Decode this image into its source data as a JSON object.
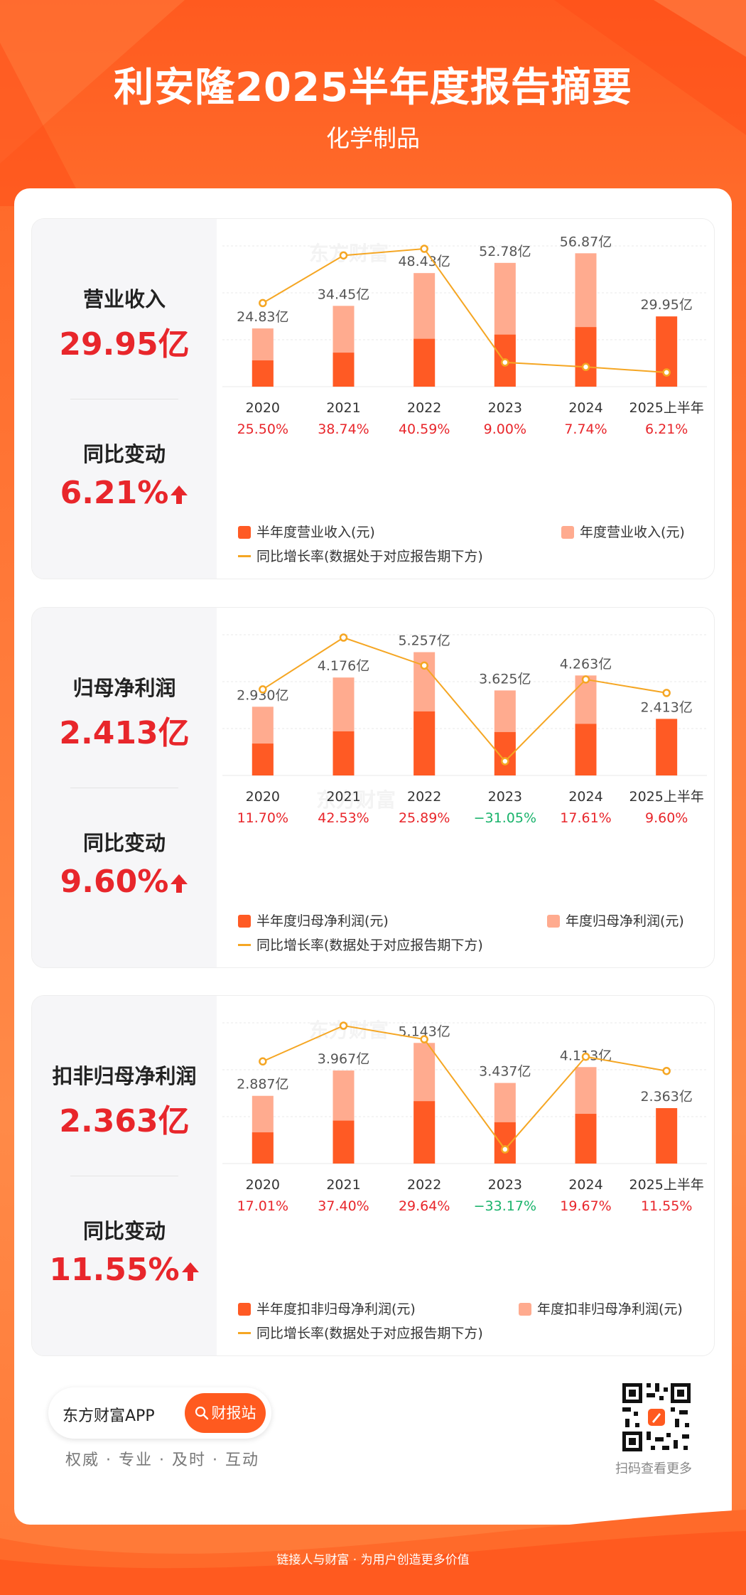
{
  "header": {
    "title": "利安隆2025半年度报告摘要",
    "subtitle": "化学制品"
  },
  "colors": {
    "accent": "#ff5a1f",
    "half_bar": "#ff5a24",
    "annual_bar": "#ffab8f",
    "growth_line": "#f5a623",
    "positive": "#e8262b",
    "negative": "#19b36b"
  },
  "watermark": "东方财富",
  "cards": [
    {
      "kpi_label": "营业收入",
      "kpi_value": "29.95亿",
      "change_label": "同比变动",
      "change_value": "6.21%",
      "legend": {
        "half": "半年度营业收入(元)",
        "annual": "年度营业收入(元)",
        "growth": "同比增长率(数据处于对应报告期下方)"
      }
    },
    {
      "kpi_label": "归母净利润",
      "kpi_value": "2.413亿",
      "change_label": "同比变动",
      "change_value": "9.60%",
      "legend": {
        "half": "半年度归母净利润(元)",
        "annual": "年度归母净利润(元)",
        "growth": "同比增长率(数据处于对应报告期下方)"
      }
    },
    {
      "kpi_label": "扣非归母净利润",
      "kpi_value": "2.363亿",
      "change_label": "同比变动",
      "change_value": "11.55%",
      "legend": {
        "half": "半年度扣非归母净利润(元)",
        "annual": "年度扣非归母净利润(元)",
        "growth": "同比增长率(数据处于对应报告期下方)"
      }
    }
  ],
  "chart_data": [
    {
      "type": "bar",
      "categories": [
        "2020",
        "2021",
        "2022",
        "2023",
        "2024",
        "2025上半年"
      ],
      "series": [
        {
          "name": "半年度营业收入(元)",
          "values": [
            11.2,
            14.5,
            20.4,
            22.2,
            25.4,
            29.95
          ]
        },
        {
          "name": "年度营业收入(元)",
          "values": [
            24.83,
            34.45,
            48.43,
            52.78,
            56.87,
            null
          ]
        },
        {
          "name": "同比增长率(数据处于对应报告期下方)",
          "values": [
            25.5,
            38.74,
            40.59,
            9.0,
            7.74,
            6.21
          ]
        }
      ],
      "bar_labels": [
        "24.83亿",
        "34.45亿",
        "48.43亿",
        "52.78亿",
        "56.87亿",
        "29.95亿"
      ],
      "growth_labels": [
        "25.50%",
        "38.74%",
        "40.59%",
        "9.00%",
        "7.74%",
        "6.21%"
      ],
      "ylim": [
        0,
        60
      ]
    },
    {
      "type": "bar",
      "categories": [
        "2020",
        "2021",
        "2022",
        "2023",
        "2024",
        "2025上半年"
      ],
      "series": [
        {
          "name": "半年度归母净利润(元)",
          "values": [
            1.36,
            1.88,
            2.73,
            1.85,
            2.2,
            2.413
          ]
        },
        {
          "name": "年度归母净利润(元)",
          "values": [
            2.93,
            4.176,
            5.257,
            3.625,
            4.263,
            null
          ]
        },
        {
          "name": "同比增长率(数据处于对应报告期下方)",
          "values": [
            11.7,
            42.53,
            25.89,
            -31.05,
            17.61,
            9.6
          ]
        }
      ],
      "bar_labels": [
        "2.930亿",
        "4.176亿",
        "5.257亿",
        "3.625亿",
        "4.263亿",
        "2.413亿"
      ],
      "growth_labels": [
        "11.70%",
        "42.53%",
        "25.89%",
        "−31.05%",
        "17.61%",
        "9.60%"
      ],
      "ylim": [
        0,
        6
      ]
    },
    {
      "type": "bar",
      "categories": [
        "2020",
        "2021",
        "2022",
        "2023",
        "2024",
        "2025上半年"
      ],
      "series": [
        {
          "name": "半年度扣非归母净利润(元)",
          "values": [
            1.33,
            1.83,
            2.66,
            1.76,
            2.12,
            2.363
          ]
        },
        {
          "name": "年度扣非归母净利润(元)",
          "values": [
            2.887,
            3.967,
            5.143,
            3.437,
            4.113,
            null
          ]
        },
        {
          "name": "同比增长率(数据处于对应报告期下方)",
          "values": [
            17.01,
            37.4,
            29.64,
            -33.17,
            19.67,
            11.55
          ]
        }
      ],
      "bar_labels": [
        "2.887亿",
        "3.967亿",
        "5.143亿",
        "3.437亿",
        "4.113亿",
        "2.363亿"
      ],
      "growth_labels": [
        "17.01%",
        "37.40%",
        "29.64%",
        "−33.17%",
        "19.67%",
        "11.55%"
      ],
      "ylim": [
        0,
        6
      ]
    }
  ],
  "footer": {
    "app_name": "东方财富APP",
    "button_label": "财报站",
    "slogan": "权威 · 专业 · 及时 · 互动",
    "qr_label": "扫码查看更多",
    "bottom_text": "链接人与财富 · 为用户创造更多价值"
  }
}
